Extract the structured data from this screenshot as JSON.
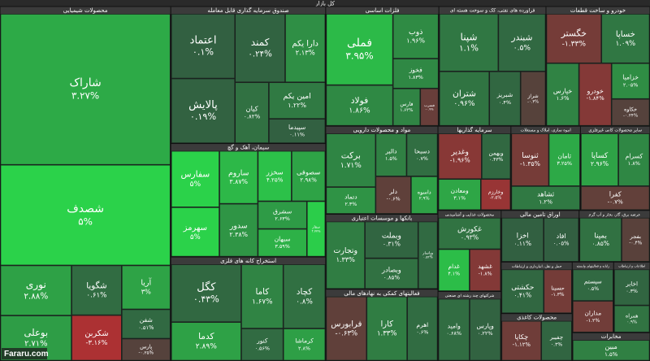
{
  "chart_data": {
    "type": "treemap",
    "title": "کل بازار",
    "watermark": "Fararu.com",
    "positive_color": "#2bd24a",
    "negative_color": "#e3262d",
    "neutral_color": "#33493f",
    "sectors": [
      {
        "name": "محصولات شیمیایی",
        "names": [
          "شاراک",
          "شصدف",
          "نوری",
          "بوعلی",
          "شگویا",
          "شکربن",
          "آریا",
          "شفن",
          "پارس"
        ],
        "values": [
          36,
          24,
          5,
          4.5,
          3.5,
          3.2,
          3,
          2,
          1.5
        ],
        "changes": [
          3.27,
          5,
          2.88,
          2.71,
          0.61,
          -3.16,
          3,
          0.51,
          -0.25
        ],
        "change_labels": [
          "۳.۲۷%",
          "۵%",
          "۲.۸۸%",
          "۲.۷۱%",
          "۰.۶۱%",
          "-۳.۱۶%",
          "۳%",
          "۰.۵۱%",
          "-۰.۲۵%"
        ]
      },
      {
        "name": "صندوق سرمایه گذاری قابل معامله",
        "names": [
          "اعتماد",
          "پالایش",
          "کمند",
          "دارا یکم",
          "کیان",
          "امین یکم",
          "سپیدما"
        ],
        "values": [
          6,
          6,
          5,
          4,
          3,
          3,
          2
        ],
        "changes": [
          0.1,
          0.19,
          0.24,
          2.13,
          0.82,
          1.22,
          0.11
        ],
        "change_labels": [
          "۰.۱%",
          "۰.۱۹%",
          "۰.۲۴%",
          "۲.۱۳%",
          "۰.۸۲%",
          "۱.۲۲%",
          "۰.۱۱%"
        ]
      },
      {
        "name": "سیمان، آهک و گچ",
        "names": [
          "سفارس",
          "سهرمز",
          "ساروم",
          "سدور",
          "سخزر",
          "سصوفی",
          "سشرق",
          "سبهان",
          "سفار"
        ],
        "values": [
          4,
          3.5,
          3,
          3,
          2.5,
          2.5,
          2,
          2,
          1.5
        ],
        "changes": [
          5,
          5,
          3.87,
          2.38,
          4.25,
          2.98,
          2.63,
          3.59,
          4.77
        ],
        "change_labels": [
          "۵%",
          "۵%",
          "۳.۸۷%",
          "۲.۳۸%",
          "۴.۲۵%",
          "۲.۹۸%",
          "۲.۶۳%",
          "۳.۵۹%",
          "۴.۷۷%"
        ]
      },
      {
        "name": "استخراج کانه های فلزی",
        "names": [
          "کگل",
          "کدما",
          "کاما",
          "کچاد",
          "کنور",
          "کرماشا"
        ],
        "values": [
          6,
          4,
          4,
          4,
          2,
          2
        ],
        "changes": [
          0.43,
          2.89,
          1.67,
          0.8,
          0.56,
          2.8
        ],
        "change_labels": [
          "۰.۴۳%",
          "۲.۸۹%",
          "۱.۶۷%",
          "۰.۸%",
          "۰.۵۶%",
          "۲.۸%"
        ]
      },
      {
        "name": "فلزات اساسی",
        "names": [
          "فملی",
          "فولاد",
          "ذوب",
          "فخوز",
          "فارس",
          "فسرب"
        ],
        "values": [
          7,
          4,
          3,
          2,
          1.5,
          1
        ],
        "changes": [
          3.95,
          1.86,
          1.96,
          1.83,
          1.63,
          -0.9
        ],
        "change_labels": [
          "۳.۹۵%",
          "۱.۸۶%",
          "۱.۹۶%",
          "۱.۸۳%",
          "۱.۶۳%",
          "-۰.۹%"
        ]
      },
      {
        "name": "فراورده های نفتی، کک و سوخت هسته ای",
        "names": [
          "شپنا",
          "شبندر",
          "شتران",
          "شبریز",
          "شراز"
        ],
        "values": [
          5,
          4,
          4,
          2.5,
          2
        ],
        "changes": [
          1.1,
          0.5,
          0.96,
          0.4,
          -0.3
        ],
        "change_labels": [
          "۱.۱%",
          "۰.۵%",
          "۰.۹۶%",
          "۰.۴%",
          "-۰.۳%"
        ]
      },
      {
        "name": "خودرو و ساخت قطعات",
        "names": [
          "خگستر",
          "خساپا",
          "خپارس",
          "خودرو",
          "خزامیا",
          "خکاوه"
        ],
        "values": [
          4,
          3.5,
          3,
          3,
          2,
          1.5
        ],
        "changes": [
          -1.33,
          1.09,
          1.6,
          -1.84,
          2.05,
          -0.24
        ],
        "change_labels": [
          "-۱.۳۳%",
          "۱.۰۹%",
          "۱.۶%",
          "-۱.۸۴%",
          "۲.۰۵%",
          "-۰.۲۴%"
        ]
      },
      {
        "name": "مواد و محصولات دارویی",
        "names": [
          "برکت",
          "دتماد",
          "دالبر",
          "دسبحا",
          "دلر",
          "داسوه"
        ],
        "values": [
          4,
          2,
          2,
          2,
          2,
          1.5
        ],
        "changes": [
          1.71,
          2.3,
          1.5,
          0.7,
          -0.6,
          2.9
        ],
        "change_labels": [
          "۱.۷۱%",
          "۲.۳%",
          "۱.۵%",
          "۰.۷%",
          "-۰.۶%",
          "۲.۹%"
        ]
      },
      {
        "name": "بانکها و موسسات اعتباری",
        "names": [
          "وتجارت",
          "وبملت",
          "وبصادر",
          "وپاسار"
        ],
        "values": [
          4,
          3,
          2.5,
          2
        ],
        "changes": [
          1.33,
          0.31,
          0.85,
          0.54
        ],
        "change_labels": [
          "۱.۳۳%",
          "۰.۳۱%",
          "۰.۸۵%",
          "۰.۵۴%"
        ]
      },
      {
        "name": "فعالیتهای کمکی به نهادهای مالی",
        "names": [
          "فرابورس",
          "کارا",
          "اهرم"
        ],
        "values": [
          4,
          4,
          3
        ],
        "changes": [
          -0.63,
          1.33,
          0.6
        ],
        "change_labels": [
          "-۰.۶۳%",
          "۱.۳۳%",
          "۰.۶%"
        ]
      },
      {
        "name": "سرمایه گذاریها",
        "names": [
          "وغدیر",
          "وبهمن",
          "ومعادن",
          "وخارزم"
        ],
        "values": [
          3,
          2,
          2,
          1.4
        ],
        "changes": [
          -1.96,
          0.43,
          3.1,
          -2.5
        ],
        "change_labels": [
          "-۱.۹۶%",
          "۰.۴۳%",
          "۳.۱%",
          "-۲.۵%"
        ]
      },
      {
        "name": "انبوه سازی، املاک و مستغلات",
        "names": [
          "ثنوسا",
          "ثامان",
          "ثشاهد"
        ],
        "values": [
          3,
          2.5,
          2.5
        ],
        "changes": [
          -1.35,
          3.25,
          1.2
        ],
        "change_labels": [
          "-۱.۳۵%",
          "۳.۲۵%",
          "۱.۲%"
        ]
      },
      {
        "name": "سایر محصولات کانی غیرفلزی",
        "names": [
          "کساپا",
          "کسرام",
          "کفرا"
        ],
        "values": [
          3,
          2.5,
          2.5
        ],
        "changes": [
          2.96,
          1.8,
          -0.7
        ],
        "change_labels": [
          "۲.۹۶%",
          "۱.۸%",
          "-۰.۷%"
        ]
      },
      {
        "name": "محصولات غذایی و آشامیدنی",
        "names": [
          "غکورش",
          "غدام",
          "غشهد"
        ],
        "values": [
          3,
          2,
          2
        ],
        "changes": [
          0.93,
          4.1,
          -1.8
        ],
        "change_labels": [
          "۰.۹۳%",
          "۴.۱%",
          "-۱.۸%"
        ]
      },
      {
        "name": "شرکتهای چند رشته ای صنعتی",
        "names": [
          "وامید",
          "وپارس"
        ],
        "values": [
          3,
          3
        ],
        "changes": [
          0.68,
          0.22
        ],
        "change_labels": [
          "۰.۶۸%",
          "۰.۲۲%"
        ]
      },
      {
        "name": "اوراق تامین مالی",
        "names": [
          "اخزا",
          "افاد"
        ],
        "values": [
          3,
          2.5
        ],
        "changes": [
          0.11,
          0.05
        ],
        "change_labels": [
          "۰.۱۱%",
          "۰.۰۵%"
        ]
      },
      {
        "name": "عرضه برق، گاز، بخار و آب گرم",
        "names": [
          "بمپنا",
          "بفجر"
        ],
        "values": [
          3,
          2
        ],
        "changes": [
          0.85,
          -0.4
        ],
        "change_labels": [
          "۰.۸۵%",
          "-۰.۴%"
        ]
      },
      {
        "name": "حمل و نقل، انبارداری و ارتباطات",
        "names": [
          "حکشتی",
          "حسینا"
        ],
        "values": [
          3,
          2
        ],
        "changes": [
          0.41,
          -1.3
        ],
        "change_labels": [
          "۰.۴۱%",
          "-۱.۳%"
        ]
      },
      {
        "name": "محصولات کاغذی",
        "names": [
          "چکاپا",
          "چفیبر"
        ],
        "values": [
          2.6,
          2
        ],
        "changes": [
          -1.12,
          0.3
        ],
        "change_labels": [
          "-۱.۱۲%",
          "۰.۳%"
        ]
      },
      {
        "name": "رایانه و فعالیتهای وابسته",
        "names": [
          "سیستم",
          "مداران"
        ],
        "values": [
          2,
          2
        ],
        "changes": [
          0.5,
          -1.2
        ],
        "change_labels": [
          "۰.۵%",
          "-۱.۲%"
        ]
      },
      {
        "name": "اطلاعات و ارتباطات",
        "names": [
          "اخابر",
          "همراه"
        ],
        "values": [
          2,
          1.5
        ],
        "changes": [
          0.3,
          0.9
        ],
        "change_labels": [
          "۰.۳%",
          "۰.۹%"
        ]
      },
      {
        "name": "مخابرات",
        "names": [
          "مبین"
        ],
        "values": [
          3
        ],
        "changes": [
          1.5
        ],
        "change_labels": [
          "۱.۵%"
        ]
      }
    ]
  }
}
